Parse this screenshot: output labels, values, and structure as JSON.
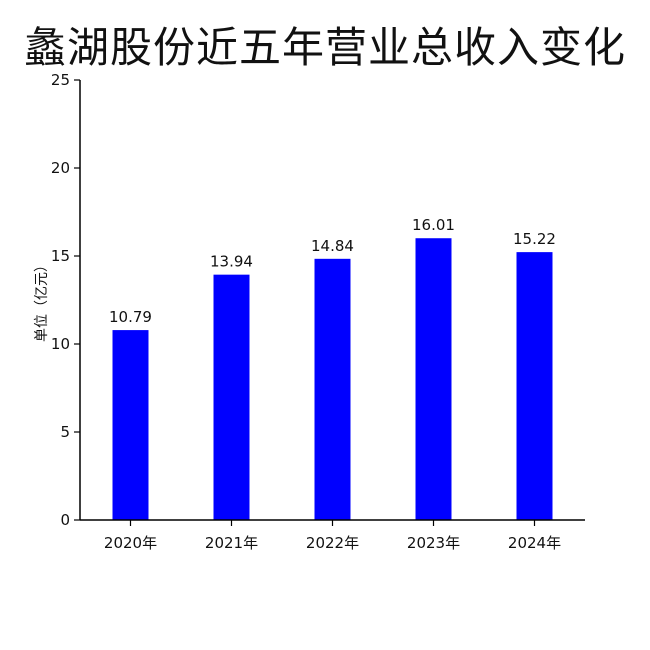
{
  "chart_data": {
    "type": "bar",
    "title": "蠡湖股份近五年营业总收入变化",
    "ylabel": "单位（亿元）",
    "xlabel": "",
    "categories": [
      "2020年",
      "2021年",
      "2022年",
      "2023年",
      "2024年"
    ],
    "values": [
      10.79,
      13.94,
      14.84,
      16.01,
      15.22
    ],
    "data_labels": [
      "10.79",
      "13.94",
      "14.84",
      "16.01",
      "15.22"
    ],
    "ylim": [
      0,
      25
    ],
    "yticks": [
      0,
      5,
      10,
      15,
      20,
      25
    ],
    "bar_color": "#0000ff",
    "grid": false,
    "legend": "none"
  }
}
